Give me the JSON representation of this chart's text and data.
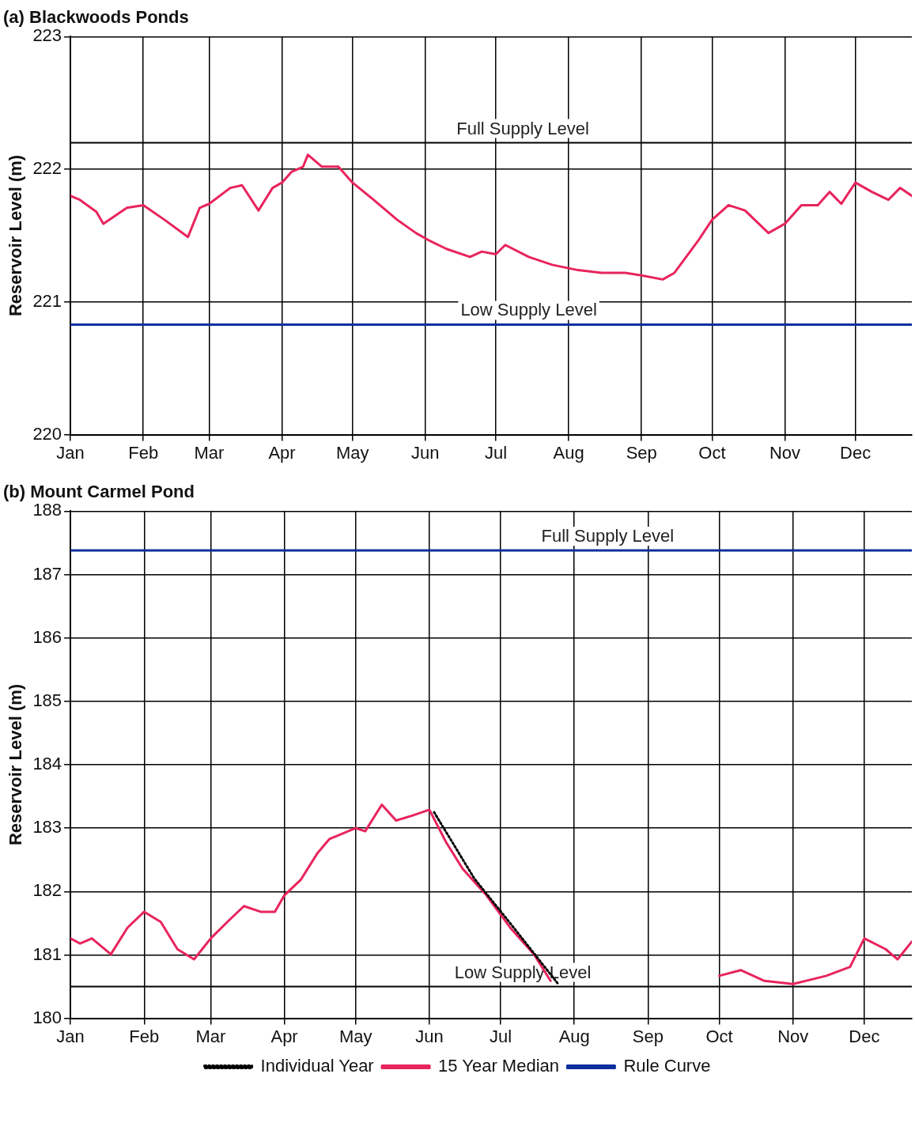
{
  "chart_data": [
    {
      "type": "line",
      "title": "(a) Blackwoods Ponds",
      "ylabel": "Reservoir Level (m)",
      "xlim": [
        "--01-01",
        "--12-25"
      ],
      "ylim": [
        220,
        223
      ],
      "yticks": [
        220,
        221,
        222,
        223
      ],
      "xticks": [
        {
          "value": "--01-01",
          "label": "Jan"
        },
        {
          "value": "--02-01",
          "label": "Feb"
        },
        {
          "value": "--03-01",
          "label": "Mar"
        },
        {
          "value": "--04-01",
          "label": "Apr"
        },
        {
          "value": "--05-01",
          "label": "May"
        },
        {
          "value": "--06-01",
          "label": "Jun"
        },
        {
          "value": "--07-01",
          "label": "Jul"
        },
        {
          "value": "--08-01",
          "label": "Aug"
        },
        {
          "value": "--09-01",
          "label": "Sep"
        },
        {
          "value": "--10-01",
          "label": "Oct"
        },
        {
          "value": "--11-01",
          "label": "Nov"
        },
        {
          "value": "--12-01",
          "label": "Dec"
        }
      ],
      "grid": true,
      "legend": false,
      "marker": "none",
      "line_style": "solid",
      "series": [
        {
          "color": "#e8245c",
          "x": [
            "--01-01",
            "--01-05",
            "--01-12",
            "--01-15",
            "--01-25",
            "--02-01",
            "--02-10",
            "--02-20",
            "--02-25",
            "--03-01",
            "--03-10",
            "--03-15",
            "--03-22",
            "--03-28",
            "--04-01",
            "--04-05",
            "--04-10",
            "--04-12",
            "--04-18",
            "--04-25",
            "--05-01",
            "--05-10",
            "--05-20",
            "--05-28",
            "--06-03",
            "--06-10",
            "--06-20",
            "--06-25",
            "--07-01",
            "--07-05",
            "--07-15",
            "--07-25",
            "--08-05",
            "--08-15",
            "--08-25",
            "--09-01",
            "--09-10",
            "--09-15",
            "--09-25",
            "--10-01",
            "--10-08",
            "--10-15",
            "--10-25",
            "--11-01",
            "--11-08",
            "--11-15",
            "--11-20",
            "--11-25",
            "--12-01",
            "--12-08",
            "--12-15",
            "--12-20",
            "--12-25"
          ],
          "values": [
            221.8,
            221.77,
            221.68,
            221.59,
            221.71,
            221.73,
            221.62,
            221.49,
            221.71,
            221.74,
            221.86,
            221.88,
            221.69,
            221.86,
            221.9,
            221.98,
            222.02,
            222.11,
            222.02,
            222.02,
            221.9,
            221.77,
            221.62,
            221.52,
            221.46,
            221.4,
            221.34,
            221.38,
            221.36,
            221.43,
            221.34,
            221.28,
            221.24,
            221.22,
            221.22,
            221.2,
            221.17,
            221.22,
            221.46,
            221.62,
            221.73,
            221.69,
            221.52,
            221.59,
            221.73,
            221.73,
            221.83,
            221.74,
            221.9,
            221.83,
            221.77,
            221.86,
            221.8
          ]
        },
        {
          "color": "#0d2fa0",
          "x": [
            "--01-01",
            "--12-25"
          ],
          "values": [
            220.83,
            220.83
          ]
        }
      ],
      "ref_lines": [
        {
          "axis": "y",
          "value": 222.2,
          "label": "Full Supply Level",
          "color": "#000000"
        }
      ],
      "annotations": [
        {
          "text": "Low Supply Level",
          "x": "--07-15",
          "y": 220.83
        }
      ]
    },
    {
      "type": "line",
      "title": "(b) Mount Carmel Pond",
      "ylabel": "Reservoir Level (m)",
      "xlim": [
        "--01-01",
        "--12-21"
      ],
      "ylim": [
        180,
        188
      ],
      "yticks": [
        180,
        181,
        182,
        183,
        184,
        185,
        186,
        187,
        188
      ],
      "xticks": [
        {
          "value": "--01-01",
          "label": "Jan"
        },
        {
          "value": "--02-01",
          "label": "Feb"
        },
        {
          "value": "--03-01",
          "label": "Mar"
        },
        {
          "value": "--04-01",
          "label": "Apr"
        },
        {
          "value": "--05-01",
          "label": "May"
        },
        {
          "value": "--06-01",
          "label": "Jun"
        },
        {
          "value": "--07-01",
          "label": "Jul"
        },
        {
          "value": "--08-01",
          "label": "Aug"
        },
        {
          "value": "--09-01",
          "label": "Sep"
        },
        {
          "value": "--10-01",
          "label": "Oct"
        },
        {
          "value": "--11-01",
          "label": "Nov"
        },
        {
          "value": "--12-01",
          "label": "Dec"
        }
      ],
      "grid": true,
      "legend": "bottom",
      "marker": "none",
      "line_style": "solid",
      "series": [
        {
          "name": "Individual Year",
          "color": "#000000",
          "line_style": "dotted",
          "x": [
            "--06-03",
            "--06-20",
            "--07-05",
            "--07-25"
          ],
          "values": [
            183.25,
            182.2,
            181.5,
            180.55
          ]
        },
        {
          "name": "15 Year Median",
          "color": "#e8245c",
          "x": [
            "--01-01",
            "--01-05",
            "--01-10",
            "--01-18",
            "--01-25",
            "--02-01",
            "--02-08",
            "--02-15",
            "--02-22",
            "--03-01",
            "--03-08",
            "--03-15",
            "--03-22",
            "--03-28",
            "--04-01",
            "--04-08",
            "--04-15",
            "--04-20",
            "--05-01",
            "--05-05",
            "--05-12",
            "--05-18",
            "--05-25",
            "--06-01",
            "--06-08",
            "--06-15",
            "--06-25",
            "--07-05",
            "--07-15",
            "--07-22",
            "--09-01",
            "--10-01",
            "--10-10",
            "--10-20",
            "--11-01",
            "--11-15",
            "--11-25",
            "--12-01",
            "--12-10",
            "--12-15",
            "--12-21"
          ],
          "values": [
            181.26,
            181.18,
            181.26,
            181.01,
            181.43,
            181.68,
            181.52,
            181.09,
            180.93,
            181.26,
            181.52,
            181.77,
            181.68,
            181.68,
            181.94,
            182.19,
            182.61,
            182.83,
            183.0,
            182.95,
            183.37,
            183.12,
            183.2,
            183.29,
            182.78,
            182.36,
            181.94,
            181.43,
            181.01,
            180.59,
            null,
            180.67,
            180.76,
            180.59,
            180.54,
            180.67,
            180.81,
            181.26,
            181.09,
            180.93,
            181.21
          ]
        },
        {
          "name": "Rule Curve",
          "color": "#0d2fa0",
          "x": [
            "--01-01",
            "--12-21"
          ],
          "values": [
            187.38,
            187.38
          ]
        }
      ],
      "ref_lines": [
        {
          "axis": "y",
          "value": 180.5,
          "label": "Low Supply Level",
          "color": "#000000"
        }
      ],
      "annotations": [
        {
          "text": "Full Supply Level",
          "x": "--08-15",
          "y": 187.38
        }
      ]
    }
  ]
}
